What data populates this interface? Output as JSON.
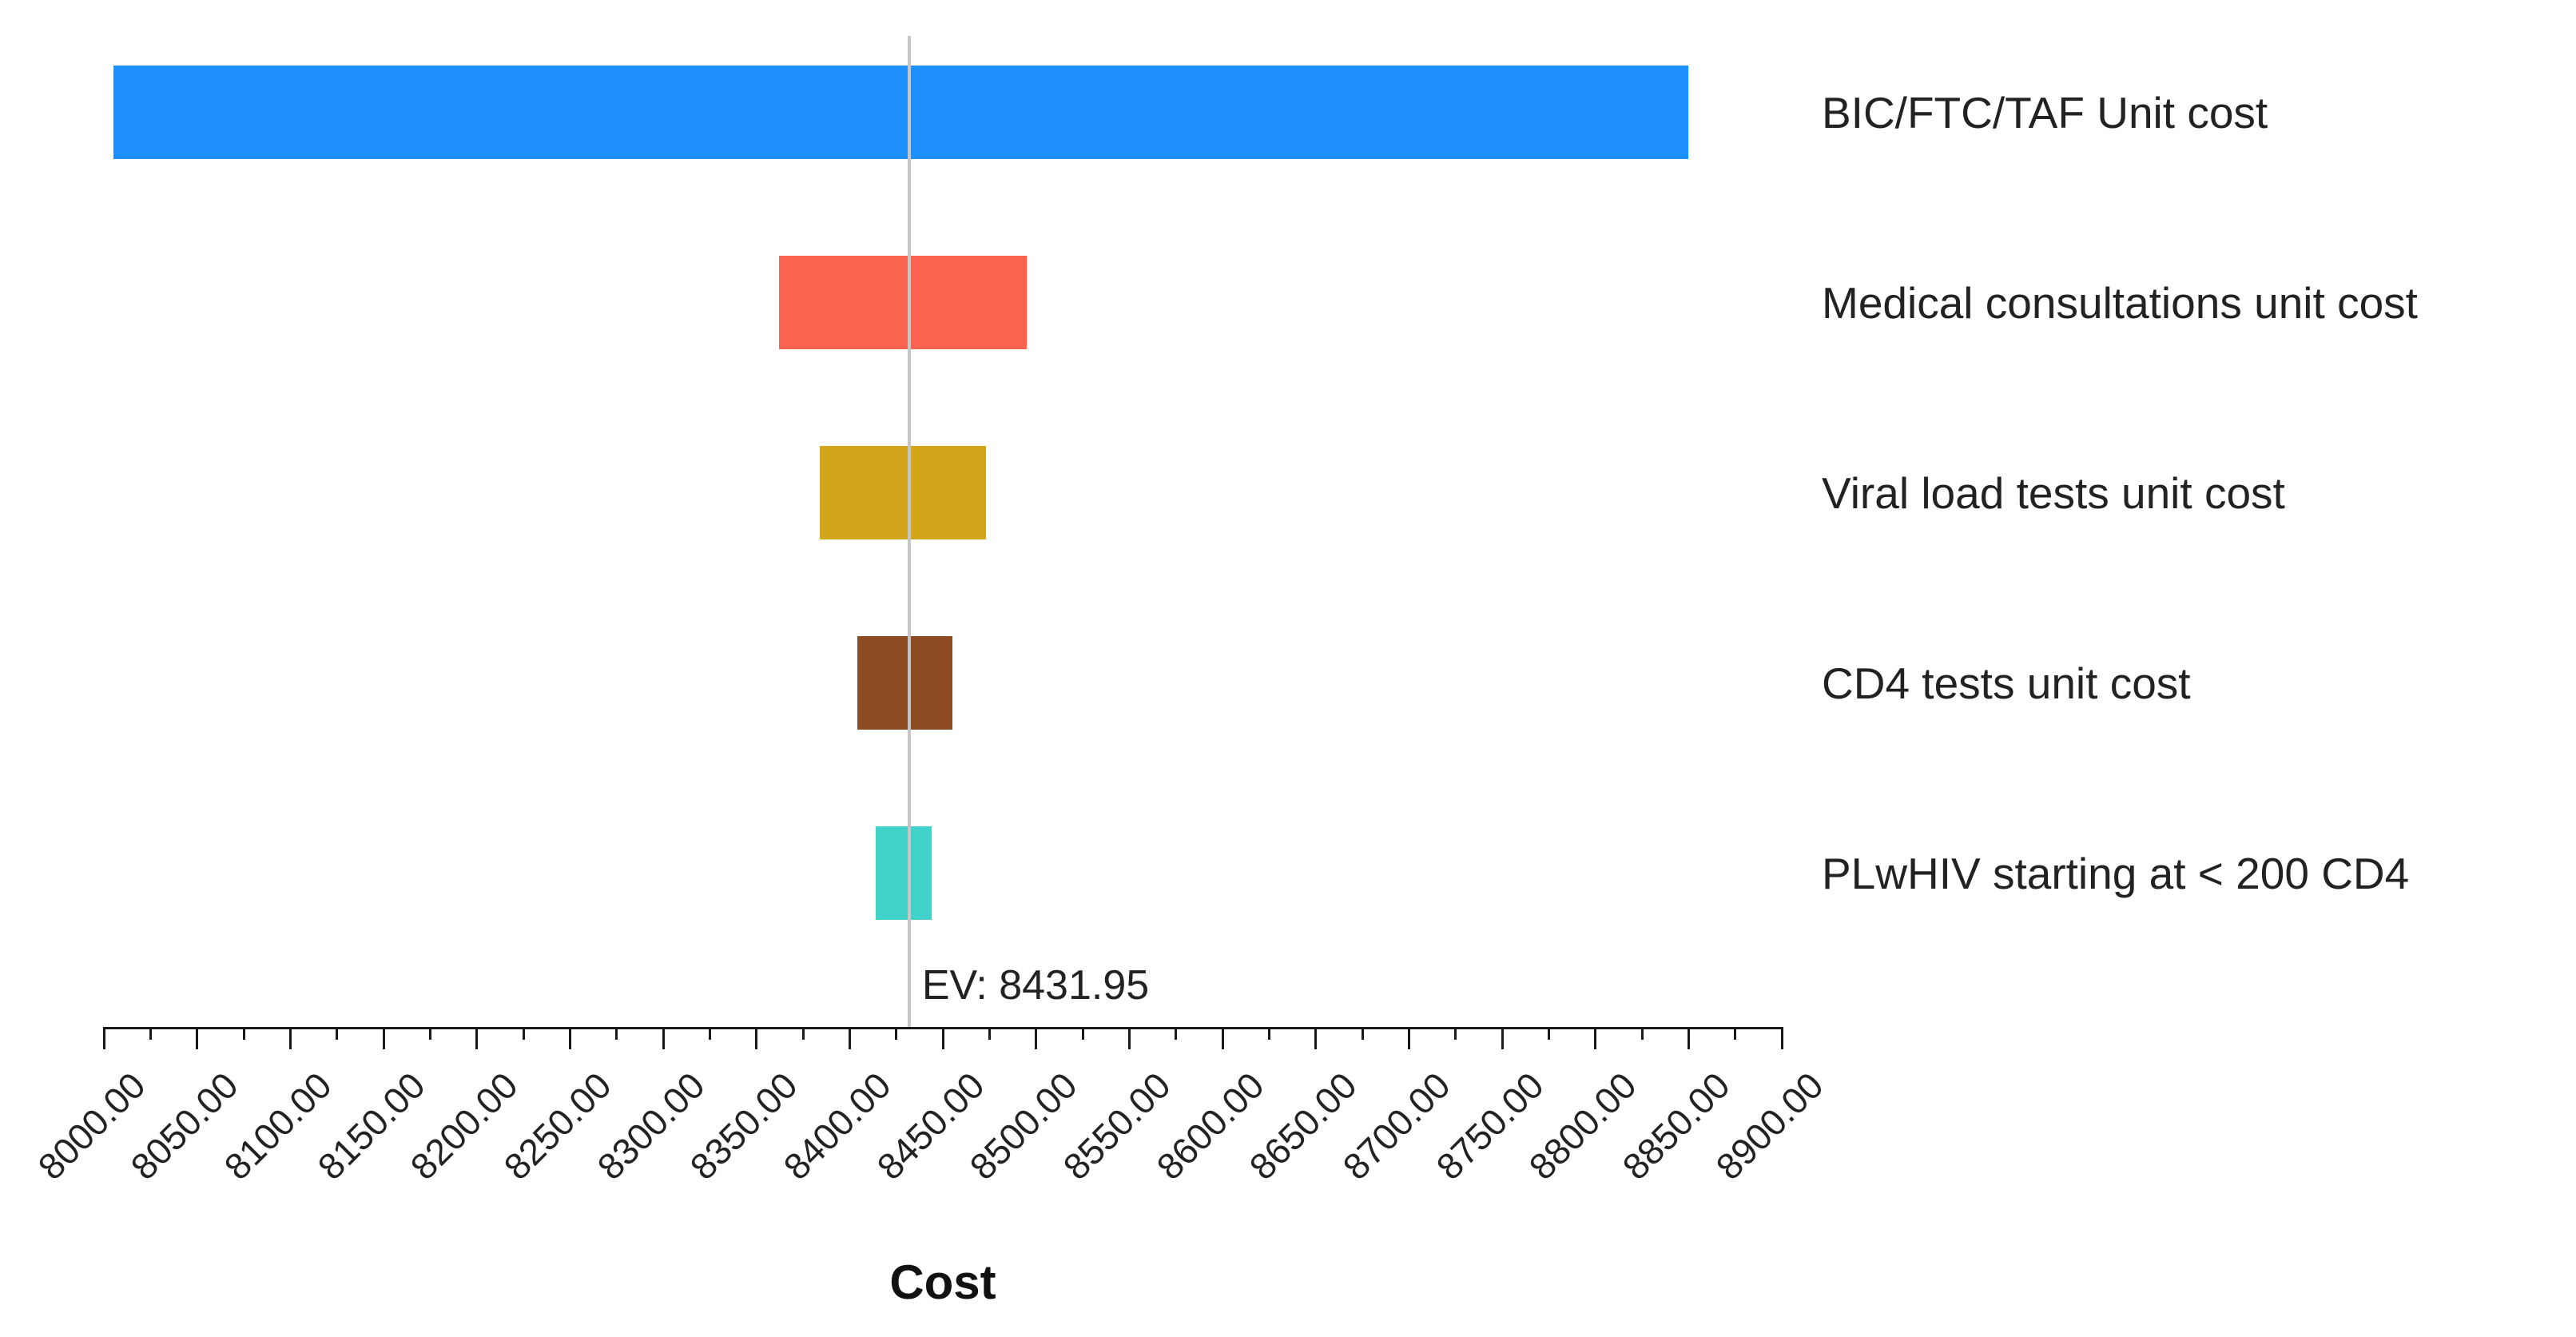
{
  "chart_data": {
    "type": "bar",
    "variant": "tornado-sensitivity",
    "title": "",
    "xlabel": "Cost",
    "x_min": 8000,
    "x_max": 8900,
    "x_tick_step": 50,
    "tick_labels": [
      "8000.00",
      "8050.00",
      "8100.00",
      "8150.00",
      "8200.00",
      "8250.00",
      "8300.00",
      "8350.00",
      "8400.00",
      "8450.00",
      "8500.00",
      "8550.00",
      "8600.00",
      "8650.00",
      "8700.00",
      "8750.00",
      "8800.00",
      "8850.00",
      "8900.00"
    ],
    "ev_value": 8431.95,
    "ev_label": "EV: 8431.95",
    "grid": false,
    "category_labels_position": "right",
    "bars": [
      {
        "label": "BIC/FTC/TAF Unit cost",
        "low": 8005,
        "high": 8850,
        "color": "#1E8FFF"
      },
      {
        "label": "Medical consultations unit cost",
        "low": 8362,
        "high": 8495,
        "color": "#F96350"
      },
      {
        "label": "Viral load tests unit cost",
        "low": 8384,
        "high": 8473,
        "color": "#D3A51B"
      },
      {
        "label": "CD4 tests unit cost",
        "low": 8404,
        "high": 8455,
        "color": "#8E4A21"
      },
      {
        "label": "PLwHIV starting at < 200 CD4",
        "low": 8414,
        "high": 8444,
        "color": "#43D2CA"
      }
    ],
    "colors": {
      "axis": "#1A1A1A",
      "text": "#222222",
      "ev_line": "#C6C6C6",
      "background": "#FFFFFF"
    }
  }
}
